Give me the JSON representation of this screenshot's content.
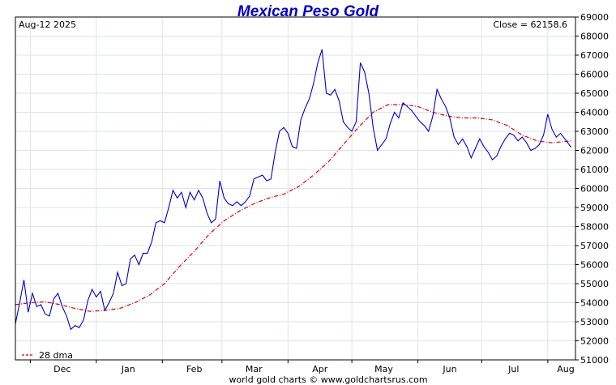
{
  "chart_data": {
    "type": "line",
    "title": "Mexican Peso Gold",
    "date_label": "Aug-12  2025",
    "close_label": "Close = 62158.6",
    "footer": "world gold charts © www.goldchartsrus.com",
    "legend": {
      "label": "28 dma",
      "placement": "bottom-left"
    },
    "xlabel": "",
    "ylabel": "",
    "ylim": [
      51000,
      69000
    ],
    "yticks": [
      51000,
      52000,
      53000,
      54000,
      55000,
      56000,
      57000,
      58000,
      59000,
      60000,
      61000,
      62000,
      63000,
      64000,
      65000,
      66000,
      67000,
      68000,
      69000
    ],
    "xlim": [
      "2024-11-24",
      "2025-08-14"
    ],
    "xticks": [
      {
        "label": "Dec",
        "date": "2024-12-01"
      },
      {
        "label": "Jan",
        "date": "2025-01-01"
      },
      {
        "label": "Feb",
        "date": "2025-02-01"
      },
      {
        "label": "Mar",
        "date": "2025-03-01"
      },
      {
        "label": "Apr",
        "date": "2025-04-01"
      },
      {
        "label": "May",
        "date": "2025-05-01"
      },
      {
        "label": "Jun",
        "date": "2025-06-01"
      },
      {
        "label": "Jul",
        "date": "2025-07-01"
      },
      {
        "label": "Aug",
        "date": "2025-08-01"
      }
    ],
    "grid": true,
    "colors": {
      "price": "#0000cc",
      "dma": "#dd0000",
      "grid": "#dde3ea",
      "title": "#0000cc"
    },
    "series": [
      {
        "name": "price",
        "x": [
          "2024-11-24",
          "2024-11-26",
          "2024-11-28",
          "2024-11-30",
          "2024-12-02",
          "2024-12-04",
          "2024-12-06",
          "2024-12-08",
          "2024-12-10",
          "2024-12-12",
          "2024-12-14",
          "2024-12-16",
          "2024-12-18",
          "2024-12-20",
          "2024-12-22",
          "2024-12-24",
          "2024-12-26",
          "2024-12-28",
          "2024-12-30",
          "2025-01-01",
          "2025-01-03",
          "2025-01-05",
          "2025-01-07",
          "2025-01-09",
          "2025-01-11",
          "2025-01-13",
          "2025-01-15",
          "2025-01-17",
          "2025-01-19",
          "2025-01-21",
          "2025-01-23",
          "2025-01-25",
          "2025-01-27",
          "2025-01-29",
          "2025-01-31",
          "2025-02-02",
          "2025-02-04",
          "2025-02-06",
          "2025-02-08",
          "2025-02-10",
          "2025-02-12",
          "2025-02-14",
          "2025-02-16",
          "2025-02-18",
          "2025-02-20",
          "2025-02-22",
          "2025-02-24",
          "2025-02-26",
          "2025-02-28",
          "2025-03-02",
          "2025-03-04",
          "2025-03-06",
          "2025-03-08",
          "2025-03-10",
          "2025-03-12",
          "2025-03-14",
          "2025-03-16",
          "2025-03-18",
          "2025-03-20",
          "2025-03-22",
          "2025-03-24",
          "2025-03-26",
          "2025-03-28",
          "2025-03-30",
          "2025-04-01",
          "2025-04-03",
          "2025-04-05",
          "2025-04-07",
          "2025-04-09",
          "2025-04-11",
          "2025-04-13",
          "2025-04-15",
          "2025-04-17",
          "2025-04-19",
          "2025-04-21",
          "2025-04-23",
          "2025-04-25",
          "2025-04-27",
          "2025-04-29",
          "2025-05-01",
          "2025-05-03",
          "2025-05-05",
          "2025-05-07",
          "2025-05-09",
          "2025-05-11",
          "2025-05-13",
          "2025-05-15",
          "2025-05-17",
          "2025-05-19",
          "2025-05-21",
          "2025-05-23",
          "2025-05-25",
          "2025-05-27",
          "2025-05-29",
          "2025-05-31",
          "2025-06-02",
          "2025-06-04",
          "2025-06-06",
          "2025-06-08",
          "2025-06-10",
          "2025-06-12",
          "2025-06-14",
          "2025-06-16",
          "2025-06-18",
          "2025-06-20",
          "2025-06-22",
          "2025-06-24",
          "2025-06-26",
          "2025-06-28",
          "2025-06-30",
          "2025-07-02",
          "2025-07-04",
          "2025-07-06",
          "2025-07-08",
          "2025-07-10",
          "2025-07-12",
          "2025-07-14",
          "2025-07-16",
          "2025-07-18",
          "2025-07-20",
          "2025-07-22",
          "2025-07-24",
          "2025-07-26",
          "2025-07-28",
          "2025-07-30",
          "2025-08-01",
          "2025-08-03",
          "2025-08-05",
          "2025-08-07",
          "2025-08-09",
          "2025-08-12"
        ],
        "values": [
          52900,
          54000,
          55200,
          53500,
          54500,
          53800,
          53900,
          53400,
          53300,
          54200,
          54500,
          53800,
          53300,
          52600,
          52800,
          52700,
          53100,
          54100,
          54700,
          54300,
          54600,
          53600,
          54000,
          54500,
          55600,
          54900,
          55000,
          56300,
          56500,
          56000,
          56600,
          56600,
          57200,
          58200,
          58300,
          58200,
          59000,
          59900,
          59500,
          59800,
          59000,
          59800,
          59400,
          59900,
          59500,
          58700,
          58200,
          58400,
          60400,
          59500,
          59200,
          59100,
          59300,
          59100,
          59300,
          59600,
          60500,
          60600,
          60700,
          60400,
          60500,
          61900,
          63000,
          63200,
          62900,
          62200,
          62100,
          63600,
          64200,
          64700,
          65500,
          66600,
          67300,
          65000,
          64900,
          65200,
          64600,
          63500,
          63200,
          63000,
          63500,
          66600,
          66100,
          65000,
          63200,
          62000,
          62300,
          62600,
          63400,
          64000,
          63700,
          64500,
          64300,
          64100,
          63800,
          63500,
          63300,
          63000,
          63800,
          65200,
          64700,
          64300,
          63700,
          62700,
          62300,
          62600,
          62200,
          61600,
          62100,
          62600,
          62200,
          61900,
          61500,
          61700,
          62200,
          62600,
          62900,
          62800,
          62500,
          62700,
          62400,
          62000,
          62100,
          62300,
          62800,
          63900,
          63100,
          62700,
          62900,
          62600,
          62158.6
        ]
      },
      {
        "name": "28 dma",
        "x": [
          "2024-11-24",
          "2024-12-01",
          "2024-12-08",
          "2024-12-15",
          "2024-12-22",
          "2024-12-29",
          "2025-01-05",
          "2025-01-12",
          "2025-01-19",
          "2025-01-26",
          "2025-02-02",
          "2025-02-09",
          "2025-02-16",
          "2025-02-23",
          "2025-03-02",
          "2025-03-09",
          "2025-03-16",
          "2025-03-23",
          "2025-03-30",
          "2025-04-06",
          "2025-04-13",
          "2025-04-20",
          "2025-04-27",
          "2025-05-04",
          "2025-05-11",
          "2025-05-18",
          "2025-05-25",
          "2025-06-01",
          "2025-06-08",
          "2025-06-15",
          "2025-06-22",
          "2025-06-29",
          "2025-07-06",
          "2025-07-13",
          "2025-07-20",
          "2025-07-27",
          "2025-08-03",
          "2025-08-12"
        ],
        "values": [
          53900,
          54000,
          54050,
          53900,
          53700,
          53550,
          53600,
          53700,
          54000,
          54400,
          55000,
          55900,
          56700,
          57600,
          58300,
          58800,
          59200,
          59500,
          59700,
          60100,
          60700,
          61400,
          62300,
          63200,
          64000,
          64400,
          64400,
          64300,
          64000,
          63800,
          63700,
          63700,
          63600,
          63300,
          62800,
          62500,
          62400,
          62500
        ]
      }
    ]
  }
}
